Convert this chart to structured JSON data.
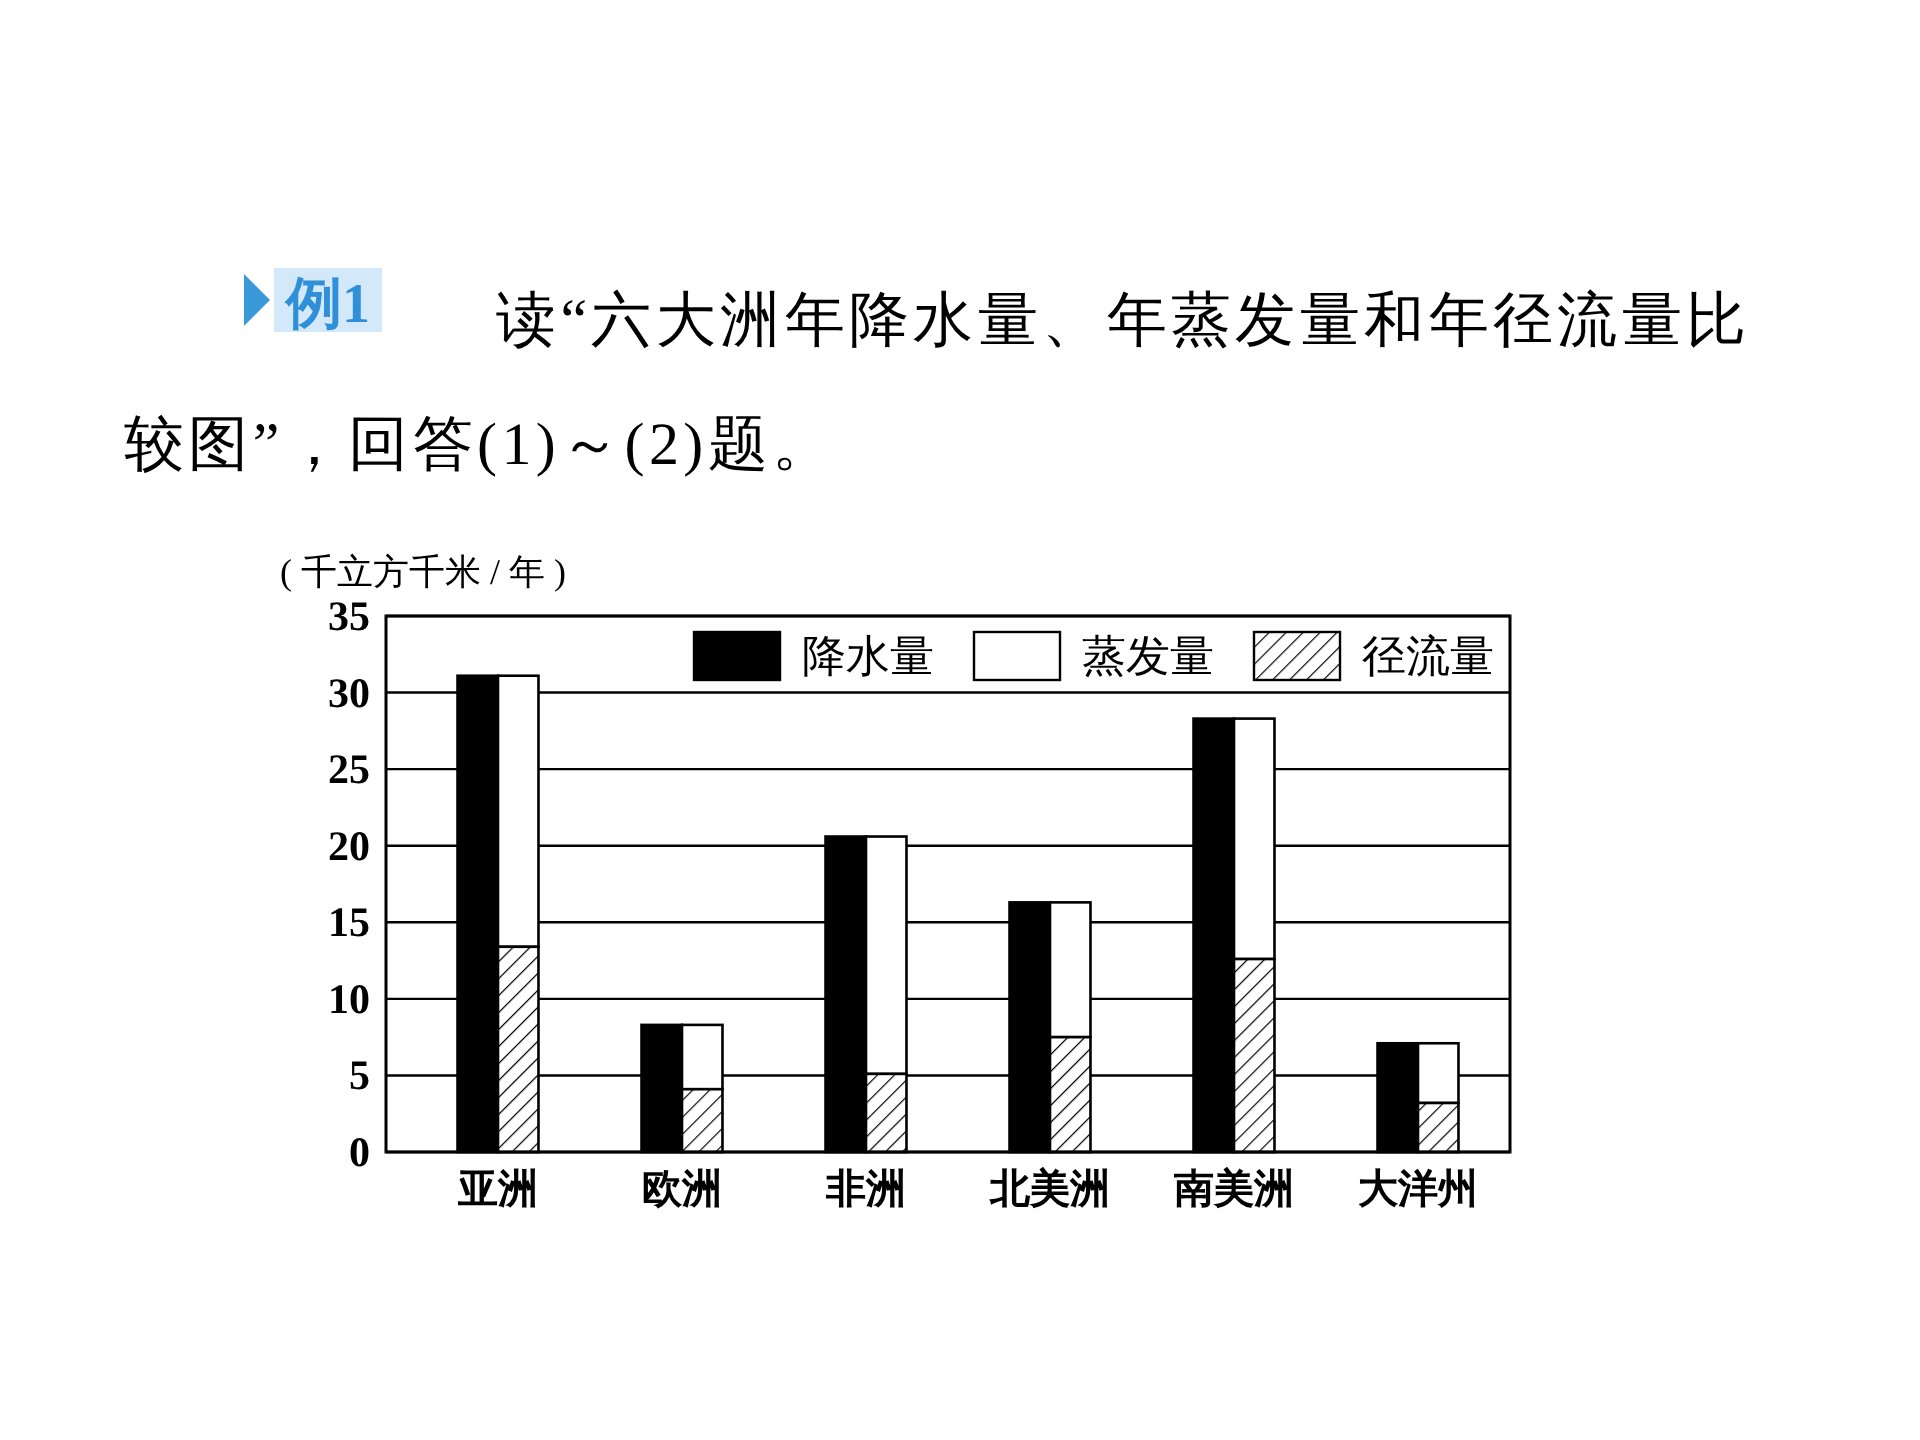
{
  "chart_data": {
    "type": "bar",
    "title": "例1",
    "subtitle": "读“六大洲年降水量、年蒸发量和年径流量比较图”，回答(1)～(2)题。",
    "ylabel": "( 千立方千米 / 年 )",
    "categories": [
      "亚洲",
      "欧洲",
      "非洲",
      "北美洲",
      "南美洲",
      "大洋州"
    ],
    "series": [
      {
        "name": "降水量",
        "color": "#000000",
        "values": [
          31.1,
          8.3,
          20.6,
          16.3,
          28.3,
          7.1
        ]
      },
      {
        "name": "蒸发量",
        "color": "#ffffff",
        "values": [
          17.7,
          4.2,
          15.5,
          8.8,
          15.7,
          3.9
        ],
        "base": [
          13.4,
          4.1,
          5.1,
          7.5,
          12.6,
          3.2
        ]
      },
      {
        "name": "径流量",
        "color": "#000000",
        "values": [
          13.4,
          4.1,
          5.1,
          7.5,
          12.6,
          3.2
        ]
      }
    ],
    "ylim": [
      0,
      35
    ],
    "yticks": [
      0,
      5,
      10,
      15,
      20,
      25,
      30,
      35
    ],
    "grid": "y",
    "legend": "top right"
  }
}
